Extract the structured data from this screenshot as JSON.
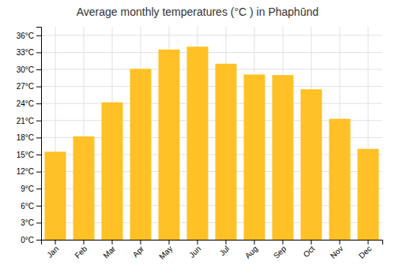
{
  "chart_data": {
    "type": "bar",
    "title": "Average monthly temperatures (°C ) in Phaphūnd",
    "categories": [
      "Jan",
      "Feb",
      "Mar",
      "Apr",
      "May",
      "Jun",
      "Jul",
      "Aug",
      "Sep",
      "Oct",
      "Nov",
      "Dec"
    ],
    "values": [
      15.5,
      18.2,
      24.2,
      30.1,
      33.5,
      34.0,
      31.0,
      29.1,
      29.0,
      26.5,
      21.3,
      16.0
    ],
    "color": "#FFC125",
    "ylim": [
      0,
      37.5
    ],
    "yticks": [
      {
        "value": 0,
        "label": "0°C"
      },
      {
        "value": 3,
        "label": "3°C"
      },
      {
        "value": 6,
        "label": "6°C"
      },
      {
        "value": 9,
        "label": "9°C"
      },
      {
        "value": 12,
        "label": "12°C"
      },
      {
        "value": 15,
        "label": "15°C"
      },
      {
        "value": 18,
        "label": "18°C"
      },
      {
        "value": 21,
        "label": "21°C"
      },
      {
        "value": 24,
        "label": "24°C"
      },
      {
        "value": 27,
        "label": "27°C"
      },
      {
        "value": 30,
        "label": "30°C"
      },
      {
        "value": 33,
        "label": "33°C"
      },
      {
        "value": 36,
        "label": "36°C"
      }
    ],
    "grid": true
  }
}
